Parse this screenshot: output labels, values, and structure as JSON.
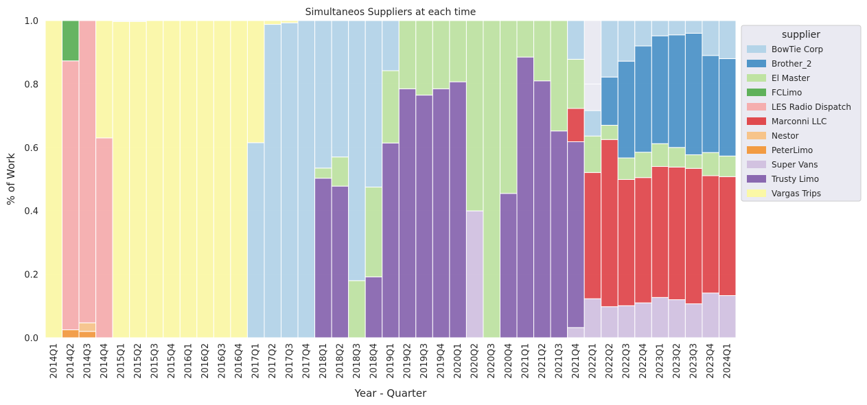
{
  "chart_data": {
    "type": "bar",
    "stacked": true,
    "normalized": true,
    "title": "Simultaneos Suppliers at each time",
    "xlabel": "Year - Quarter",
    "ylabel": "% of Work",
    "ylim": [
      0,
      1
    ],
    "yticks": [
      "0.0",
      "0.2",
      "0.4",
      "0.6",
      "0.8",
      "1.0"
    ],
    "grid": true,
    "legend_title": "supplier",
    "legend_position": "outside right",
    "categories": [
      "2014Q1",
      "2014Q2",
      "2014Q3",
      "2014Q4",
      "2015Q1",
      "2015Q2",
      "2015Q3",
      "2015Q4",
      "2016Q1",
      "2016Q2",
      "2016Q3",
      "2016Q4",
      "2017Q1",
      "2017Q2",
      "2017Q3",
      "2017Q4",
      "2018Q1",
      "2018Q2",
      "2018Q3",
      "2018Q4",
      "2019Q1",
      "2019Q2",
      "2019Q3",
      "2019Q4",
      "2020Q1",
      "2020Q2",
      "2020Q3",
      "2020Q4",
      "2021Q1",
      "2021Q2",
      "2021Q3",
      "2021Q4",
      "2022Q1",
      "2022Q2",
      "2022Q3",
      "2022Q4",
      "2023Q1",
      "2023Q2",
      "2023Q3",
      "2023Q4",
      "2024Q1"
    ],
    "stack_order": [
      "PeterLimo",
      "Nestor",
      "Super Vans",
      "Trusty Limo",
      "Marconni LLC",
      "LES Radio Dispatch",
      "FCLimo",
      "El Master",
      "Brother_2",
      "BowTie Corp",
      "Vargas Trips"
    ],
    "series": [
      {
        "name": "BowTie Corp",
        "color": "#b4d4e8",
        "values": [
          0,
          0,
          0,
          0,
          0,
          0,
          0,
          0,
          0,
          0,
          0,
          0,
          0.615,
          0.988,
          0.993,
          1.0,
          0.465,
          0.43,
          0.82,
          0.525,
          0.158,
          0,
          0,
          0,
          0,
          0,
          0,
          0,
          0,
          0,
          0,
          0.122,
          0.08,
          0.178,
          0.128,
          0.08,
          0.048,
          0.045,
          0.04,
          0.11,
          0.12
        ]
      },
      {
        "name": "Brother_2",
        "color": "#4f95c8",
        "values": [
          0,
          0,
          0,
          0,
          0,
          0,
          0,
          0,
          0,
          0,
          0,
          0,
          0,
          0,
          0,
          0,
          0,
          0,
          0,
          0,
          0,
          0,
          0,
          0,
          0,
          0,
          0,
          0,
          0,
          0,
          0,
          0,
          0,
          0.152,
          0.305,
          0.335,
          0.34,
          0.355,
          0.383,
          0.306,
          0.307
        ]
      },
      {
        "name": "El Master",
        "color": "#bfe3a2",
        "values": [
          0,
          0,
          0,
          0,
          0,
          0,
          0,
          0,
          0,
          0,
          0,
          0,
          0,
          0,
          0,
          0,
          0.032,
          0.092,
          0.18,
          0.283,
          0.228,
          0.215,
          0.235,
          0.215,
          0.193,
          0.6,
          1.0,
          0.545,
          0.115,
          0.19,
          0.348,
          0.155,
          0.115,
          0.045,
          0.068,
          0.08,
          0.072,
          0.062,
          0.043,
          0.073,
          0.065
        ]
      },
      {
        "name": "FCLimo",
        "color": "#5fb15a",
        "values": [
          0,
          0.127,
          0,
          0,
          0,
          0,
          0,
          0,
          0,
          0,
          0,
          0,
          0,
          0,
          0,
          0,
          0,
          0,
          0,
          0,
          0,
          0,
          0,
          0,
          0,
          0,
          0,
          0,
          0,
          0,
          0,
          0,
          0,
          0,
          0,
          0,
          0,
          0,
          0,
          0,
          0
        ]
      },
      {
        "name": "LES Radio Dispatch",
        "color": "#f5aeae",
        "values": [
          0,
          0.848,
          0.953,
          0.63,
          0,
          0,
          0,
          0,
          0,
          0,
          0,
          0,
          0,
          0,
          0,
          0,
          0,
          0,
          0,
          0,
          0,
          0,
          0,
          0,
          0,
          0,
          0,
          0,
          0,
          0,
          0,
          0,
          0,
          0,
          0,
          0,
          0,
          0,
          0,
          0,
          0
        ]
      },
      {
        "name": "Marconni LLC",
        "color": "#e04a4e",
        "values": [
          0,
          0,
          0,
          0,
          0,
          0,
          0,
          0,
          0,
          0,
          0,
          0,
          0,
          0,
          0,
          0,
          0,
          0,
          0,
          0,
          0,
          0,
          0,
          0,
          0,
          0,
          0,
          0,
          0,
          0,
          0,
          0.105,
          0.398,
          0.527,
          0.398,
          0.395,
          0.413,
          0.418,
          0.427,
          0.37,
          0.375
        ]
      },
      {
        "name": "Nestor",
        "color": "#f7c48a",
        "values": [
          0,
          0,
          0.027,
          0,
          0,
          0,
          0,
          0,
          0,
          0,
          0,
          0,
          0,
          0,
          0,
          0,
          0,
          0,
          0,
          0,
          0,
          0,
          0,
          0,
          0,
          0,
          0,
          0,
          0,
          0,
          0,
          0,
          0,
          0,
          0,
          0,
          0,
          0,
          0,
          0,
          0
        ]
      },
      {
        "name": "PeterLimo",
        "color": "#f29b42",
        "values": [
          0,
          0.025,
          0.02,
          0,
          0,
          0,
          0,
          0,
          0,
          0,
          0,
          0,
          0,
          0,
          0,
          0,
          0,
          0,
          0,
          0,
          0,
          0,
          0,
          0,
          0,
          0,
          0,
          0,
          0,
          0,
          0,
          0,
          0,
          0,
          0,
          0,
          0,
          0,
          0,
          0,
          0
        ]
      },
      {
        "name": "Super Vans",
        "color": "#d2c2e0",
        "values": [
          0,
          0,
          0,
          0,
          0,
          0,
          0,
          0,
          0,
          0,
          0,
          0,
          0,
          0,
          0,
          0,
          0,
          0,
          0,
          0,
          0,
          0,
          0,
          0,
          0,
          0.4,
          0,
          0,
          0,
          0,
          0,
          0.032,
          0.123,
          0.098,
          0.101,
          0.11,
          0.127,
          0.12,
          0.107,
          0.141,
          0.133
        ]
      },
      {
        "name": "Trusty Limo",
        "color": "#8a68b0",
        "values": [
          0,
          0,
          0,
          0,
          0,
          0,
          0,
          0,
          0,
          0,
          0,
          0,
          0,
          0,
          0,
          0,
          0.503,
          0.478,
          0,
          0.192,
          0.614,
          0.785,
          0.765,
          0.785,
          0.807,
          0,
          0,
          0.455,
          0.885,
          0.81,
          0.652,
          0.586,
          0,
          0,
          0,
          0,
          0,
          0,
          0,
          0,
          0
        ]
      },
      {
        "name": "Vargas Trips",
        "color": "#fbf8a6",
        "values": [
          1.0,
          0,
          0,
          0.37,
          0.997,
          0.997,
          1.0,
          1.0,
          1.0,
          1.0,
          1.0,
          1.0,
          0.385,
          0.012,
          0.007,
          0,
          0,
          0,
          0,
          0,
          0,
          0,
          0,
          0,
          0,
          0,
          0,
          0,
          0,
          0,
          0,
          0,
          0,
          0,
          0,
          0,
          0,
          0,
          0,
          0,
          0
        ]
      }
    ]
  }
}
